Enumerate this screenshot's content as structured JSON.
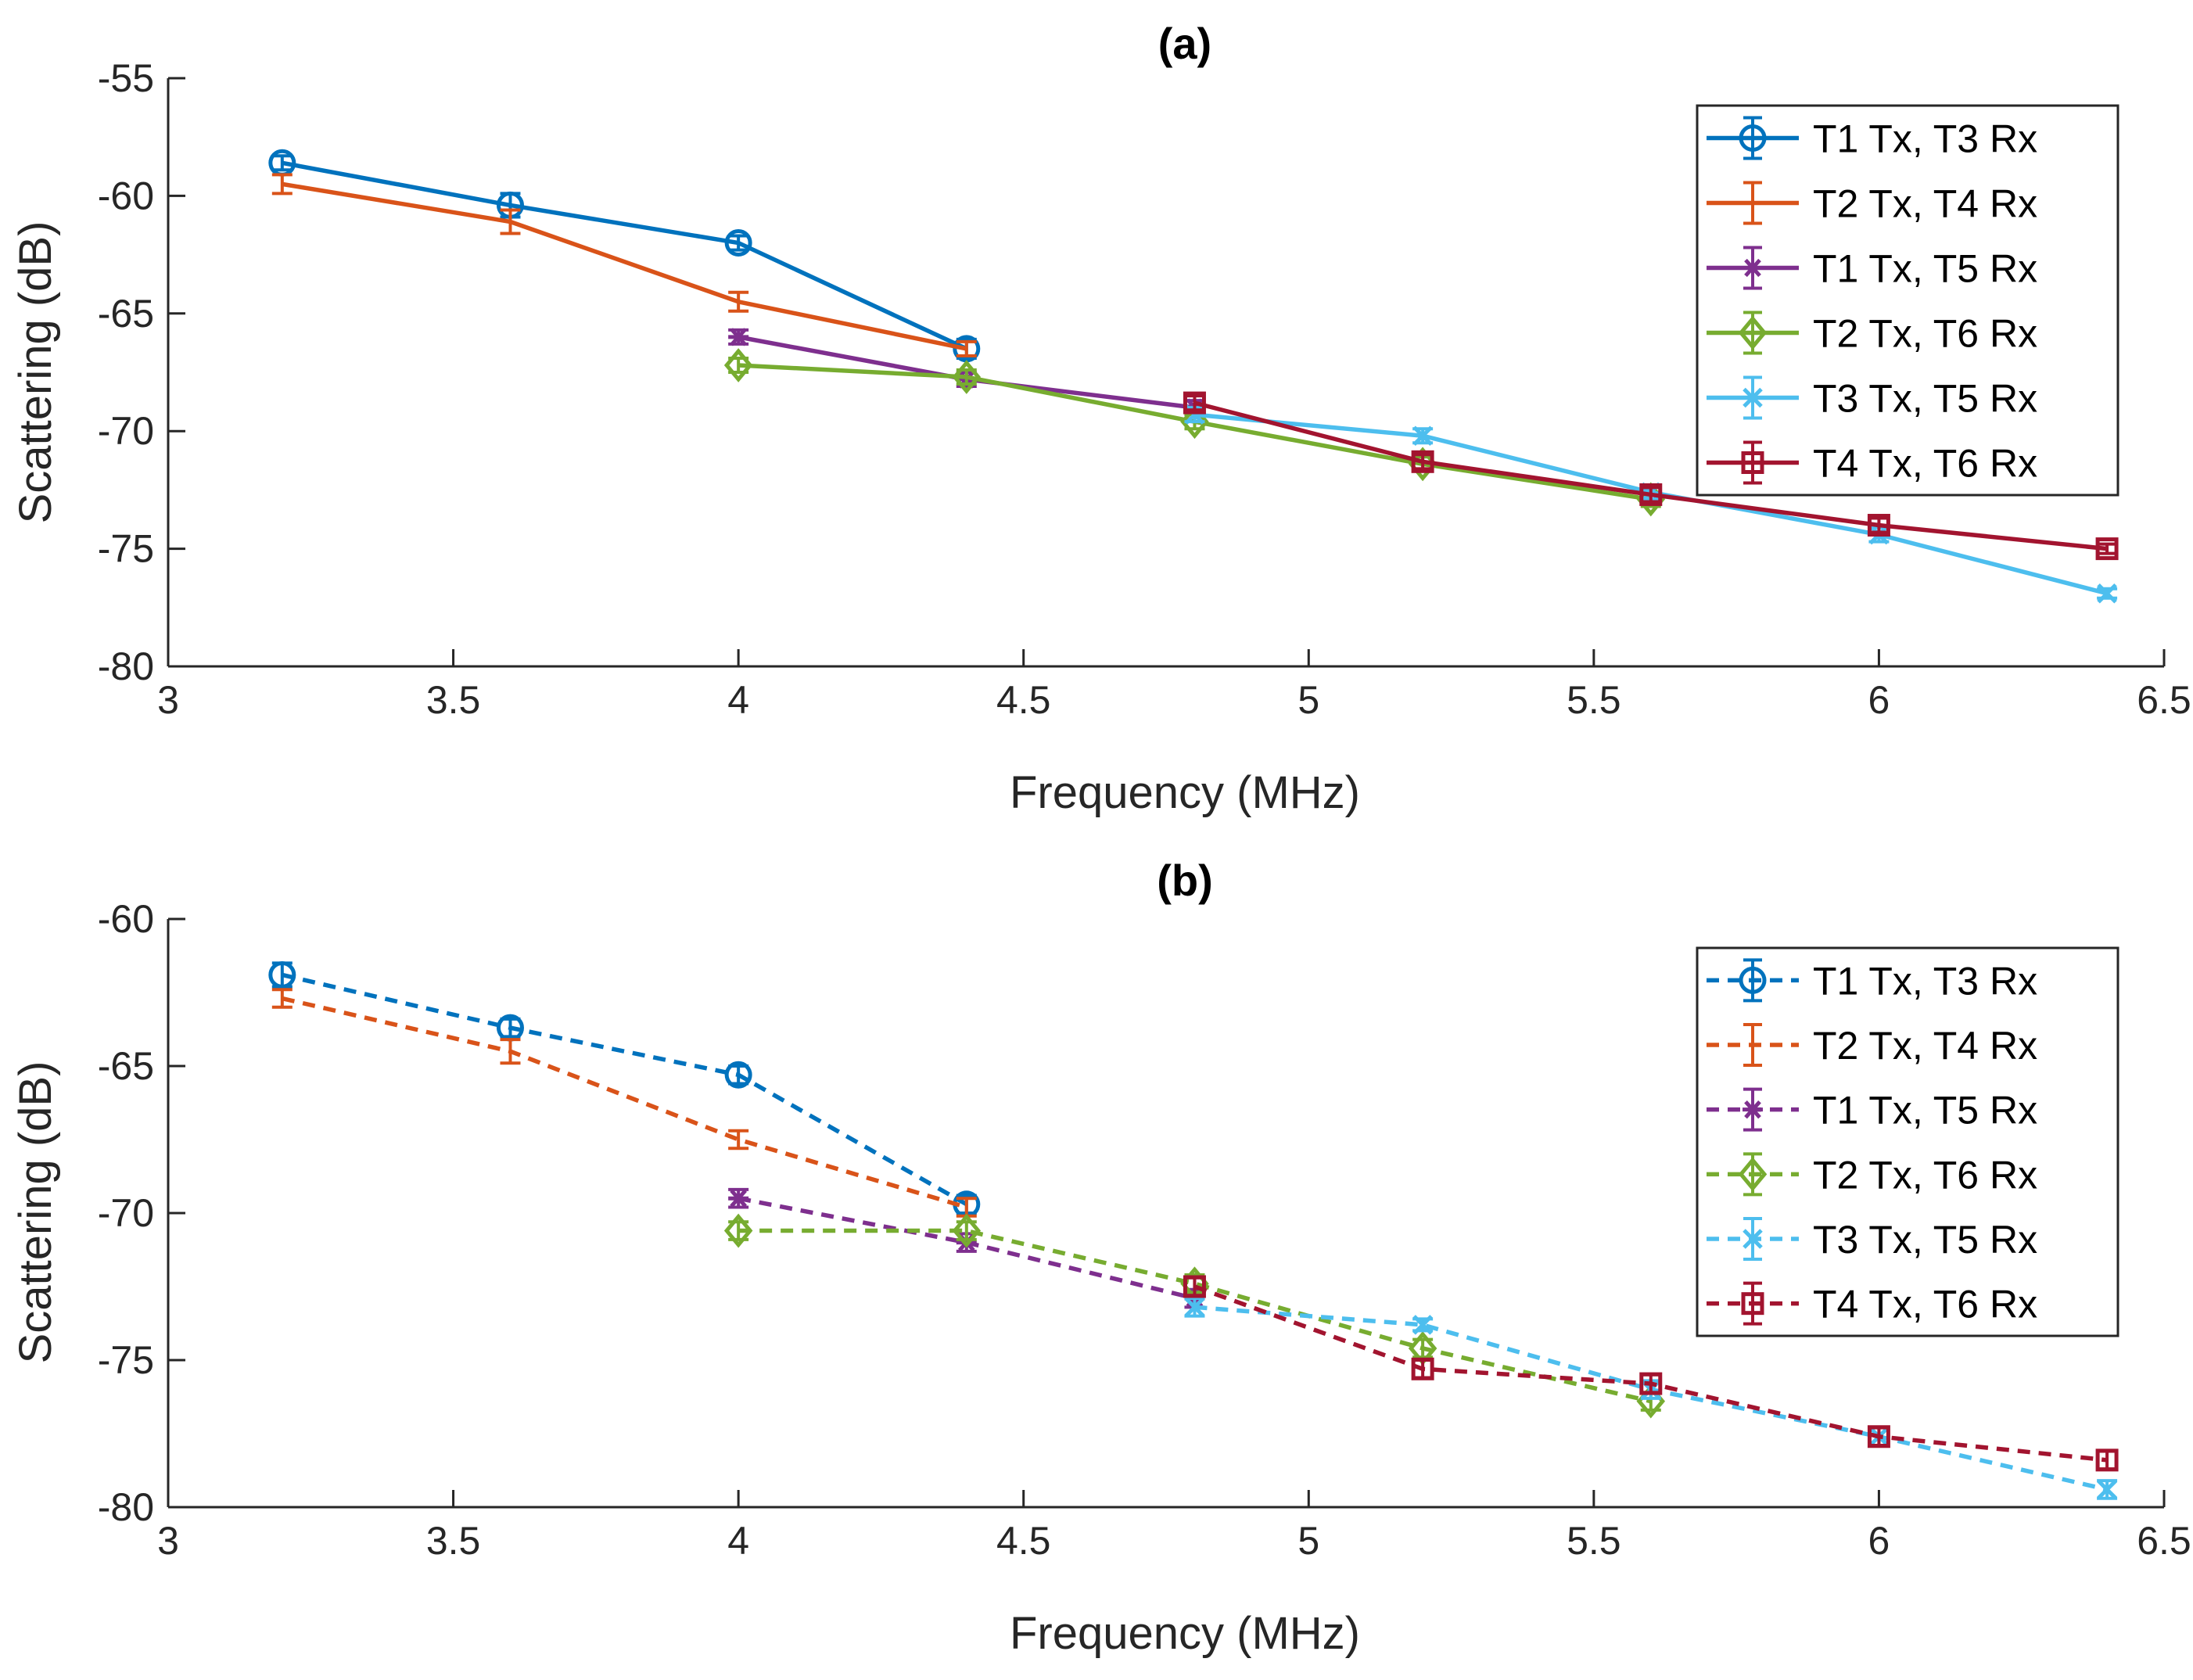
{
  "chart_data": [
    {
      "type": "line",
      "title": "(a)",
      "xlabel": "Frequency (MHz)",
      "ylabel": "Scattering (dB)",
      "xlim": [
        3,
        6.5
      ],
      "ylim": [
        -80,
        -55
      ],
      "xticks": [
        3,
        3.5,
        4,
        4.5,
        5,
        5.5,
        6,
        6.5
      ],
      "xtick_labels": [
        "3",
        "3.5",
        "4",
        "4.5",
        "5",
        "5.5",
        "6",
        "6.5"
      ],
      "yticks": [
        -80,
        -75,
        -70,
        -65,
        -60,
        -55
      ],
      "ytick_labels": [
        "-80",
        "-75",
        "-70",
        "-65",
        "-60",
        "-55"
      ],
      "line_style": "solid",
      "grid": false,
      "legend_position": "top-right",
      "series": [
        {
          "name": "T1 Tx, T3 Rx",
          "color": "#0072BD",
          "marker": "circle",
          "x": [
            3.2,
            3.6,
            4.0,
            4.4
          ],
          "y": [
            -58.6,
            -60.4,
            -62.0,
            -66.5
          ],
          "err": [
            0.3,
            0.5,
            0.3,
            0.4
          ]
        },
        {
          "name": "T2 Tx, T4 Rx",
          "color": "#D95319",
          "marker": "horizontal-bar",
          "x": [
            3.2,
            3.6,
            4.0,
            4.4
          ],
          "y": [
            -59.5,
            -61.1,
            -64.5,
            -66.5
          ],
          "err": [
            0.4,
            0.5,
            0.4,
            0.3
          ]
        },
        {
          "name": "T1 Tx, T5 Rx",
          "color": "#7E2F8E",
          "marker": "asterisk",
          "x": [
            4.0,
            4.4,
            4.8
          ],
          "y": [
            -66.0,
            -67.8,
            -69.0
          ],
          "err": [
            0.3,
            0.3,
            0.3
          ]
        },
        {
          "name": "T2 Tx, T6 Rx",
          "color": "#77AC30",
          "marker": "diamond",
          "x": [
            4.0,
            4.4,
            4.8,
            5.2,
            5.6
          ],
          "y": [
            -67.2,
            -67.7,
            -69.6,
            -71.4,
            -72.9
          ],
          "err": [
            0.3,
            0.3,
            0.3,
            0.3,
            0.3
          ]
        },
        {
          "name": "T3 Tx, T5 Rx",
          "color": "#4DBEEE",
          "marker": "x",
          "x": [
            4.8,
            5.2,
            5.6,
            6.0,
            6.4
          ],
          "y": [
            -69.3,
            -70.2,
            -72.6,
            -74.4,
            -76.9
          ],
          "err": [
            0.3,
            0.3,
            0.3,
            0.3,
            0.2
          ]
        },
        {
          "name": "T4 Tx, T6 Rx",
          "color": "#A2142F",
          "marker": "square",
          "x": [
            4.8,
            5.2,
            5.6,
            6.0,
            6.4
          ],
          "y": [
            -68.8,
            -71.3,
            -72.7,
            -74.0,
            -75.0
          ],
          "err": [
            0.3,
            0.3,
            0.3,
            0.3,
            0.2
          ]
        }
      ]
    },
    {
      "type": "line",
      "title": "(b)",
      "xlabel": "Frequency (MHz)",
      "ylabel": "Scattering (dB)",
      "xlim": [
        3,
        6.5
      ],
      "ylim": [
        -80,
        -60
      ],
      "xticks": [
        3,
        3.5,
        4,
        4.5,
        5,
        5.5,
        6,
        6.5
      ],
      "xtick_labels": [
        "3",
        "3.5",
        "4",
        "4.5",
        "5",
        "5.5",
        "6",
        "6.5"
      ],
      "yticks": [
        -80,
        -75,
        -70,
        -65,
        -60
      ],
      "ytick_labels": [
        "-80",
        "-75",
        "-70",
        "-65",
        "-60"
      ],
      "line_style": "dashed",
      "grid": false,
      "legend_position": "top-right",
      "series": [
        {
          "name": "T1 Tx, T3 Rx",
          "color": "#0072BD",
          "marker": "circle",
          "x": [
            3.2,
            3.6,
            4.0,
            4.4
          ],
          "y": [
            -61.9,
            -63.7,
            -65.3,
            -69.7
          ],
          "err": [
            0.4,
            0.3,
            0.3,
            0.3
          ]
        },
        {
          "name": "T2 Tx, T4 Rx",
          "color": "#D95319",
          "marker": "horizontal-bar",
          "x": [
            3.2,
            3.6,
            4.0,
            4.4
          ],
          "y": [
            -62.7,
            -64.5,
            -67.5,
            -69.8
          ],
          "err": [
            0.3,
            0.4,
            0.3,
            0.3
          ]
        },
        {
          "name": "T1 Tx, T5 Rx",
          "color": "#7E2F8E",
          "marker": "asterisk",
          "x": [
            4.0,
            4.4,
            4.8
          ],
          "y": [
            -69.5,
            -71.0,
            -72.9
          ],
          "err": [
            0.3,
            0.3,
            0.3
          ]
        },
        {
          "name": "T2 Tx, T6 Rx",
          "color": "#77AC30",
          "marker": "diamond",
          "x": [
            4.0,
            4.4,
            4.8,
            5.2,
            5.6
          ],
          "y": [
            -70.6,
            -70.6,
            -72.4,
            -74.6,
            -76.4
          ],
          "err": [
            0.3,
            0.3,
            0.3,
            0.3,
            0.3
          ]
        },
        {
          "name": "T3 Tx, T5 Rx",
          "color": "#4DBEEE",
          "marker": "x",
          "x": [
            4.8,
            5.2,
            5.6,
            6.0,
            6.4
          ],
          "y": [
            -73.2,
            -73.8,
            -76.0,
            -77.6,
            -79.4
          ],
          "err": [
            0.3,
            0.2,
            0.3,
            0.3,
            0.3
          ]
        },
        {
          "name": "T4 Tx, T6 Rx",
          "color": "#A2142F",
          "marker": "square",
          "x": [
            4.8,
            5.2,
            5.6,
            6.0,
            6.4
          ],
          "y": [
            -72.5,
            -75.3,
            -75.8,
            -77.6,
            -78.4
          ],
          "err": [
            0.3,
            0.3,
            0.3,
            0.3,
            0.3
          ]
        }
      ]
    }
  ]
}
